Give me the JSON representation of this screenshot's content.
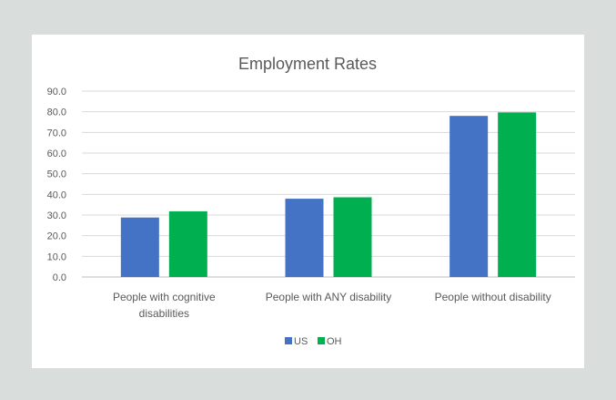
{
  "chart_data": {
    "type": "bar",
    "title": "Employment Rates",
    "categories": [
      "People with cognitive disabilities",
      "People with ANY disability",
      "People without disability"
    ],
    "category_lines": [
      [
        "People with cognitive",
        "disabilities"
      ],
      [
        "People with ANY disability"
      ],
      [
        "People without disability"
      ]
    ],
    "series": [
      {
        "name": "US",
        "values": [
          28.8,
          37.9,
          78.0
        ],
        "color": "#4472c4"
      },
      {
        "name": "OH",
        "values": [
          31.8,
          38.6,
          79.7
        ],
        "color": "#00b050"
      }
    ],
    "ylim": [
      0,
      90
    ],
    "yticks": [
      "0.0",
      "10.0",
      "20.0",
      "30.0",
      "40.0",
      "50.0",
      "60.0",
      "70.0",
      "80.0",
      "90.0"
    ],
    "grid": true,
    "legend_position": "bottom"
  }
}
